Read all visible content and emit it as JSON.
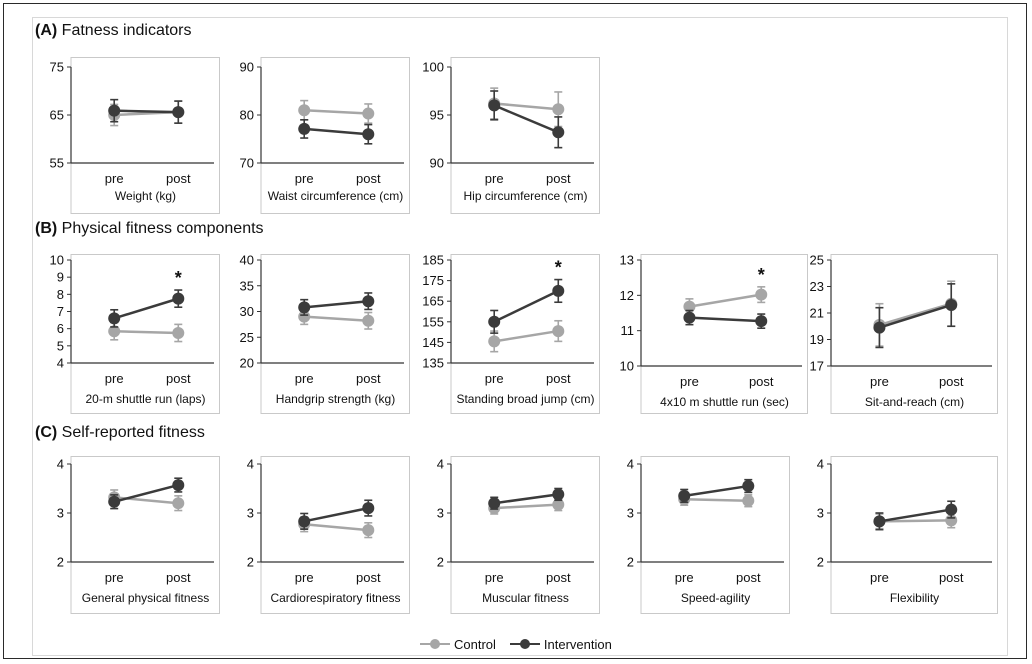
{
  "colors": {
    "control": "#a6a6a6",
    "intervention": "#3b3b3b",
    "axis": "#333333"
  },
  "sections": [
    {
      "label": "(A)",
      "title": "Fatness indicators"
    },
    {
      "label": "(B)",
      "title": "Physical fitness components"
    },
    {
      "label": "(C)",
      "title": "Self-reported fitness"
    }
  ],
  "legend": {
    "control": "Control",
    "intervention": "Intervention"
  },
  "chart_data": [
    {
      "type": "line",
      "section": "A",
      "xlabel": "Weight (kg)",
      "categories": [
        "pre",
        "post"
      ],
      "ylim": [
        55,
        75
      ],
      "yticks": [
        55,
        65,
        75
      ],
      "series": [
        {
          "name": "Control",
          "values": [
            65.0,
            65.6
          ],
          "err": [
            2.2,
            2.3
          ]
        },
        {
          "name": "Intervention",
          "values": [
            65.9,
            65.6
          ],
          "err": [
            2.3,
            2.3
          ]
        }
      ]
    },
    {
      "type": "line",
      "section": "A",
      "xlabel": "Waist circumference (cm)",
      "categories": [
        "pre",
        "post"
      ],
      "ylim": [
        70,
        90
      ],
      "yticks": [
        70,
        80,
        90
      ],
      "series": [
        {
          "name": "Control",
          "values": [
            81.0,
            80.3
          ],
          "err": [
            2.0,
            2.0
          ]
        },
        {
          "name": "Intervention",
          "values": [
            77.1,
            76.0
          ],
          "err": [
            1.9,
            2.0
          ]
        }
      ]
    },
    {
      "type": "line",
      "section": "A",
      "xlabel": "Hip circumference (cm)",
      "categories": [
        "pre",
        "post"
      ],
      "ylim": [
        90,
        100
      ],
      "yticks": [
        90,
        95,
        100
      ],
      "series": [
        {
          "name": "Control",
          "values": [
            96.2,
            95.6
          ],
          "err": [
            1.6,
            1.8
          ]
        },
        {
          "name": "Intervention",
          "values": [
            96.0,
            93.2
          ],
          "err": [
            1.5,
            1.6
          ]
        }
      ]
    },
    {
      "type": "line",
      "section": "B",
      "xlabel": "20-m shuttle run (laps)",
      "categories": [
        "pre",
        "post"
      ],
      "ylim": [
        4,
        10
      ],
      "yticks": [
        4,
        5,
        6,
        7,
        8,
        9,
        10
      ],
      "significant": "*",
      "series": [
        {
          "name": "Control",
          "values": [
            5.85,
            5.75
          ],
          "err": [
            0.5,
            0.5
          ]
        },
        {
          "name": "Intervention",
          "values": [
            6.6,
            7.75
          ],
          "err": [
            0.5,
            0.5
          ]
        }
      ]
    },
    {
      "type": "line",
      "section": "B",
      "xlabel": "Handgrip strength (kg)",
      "categories": [
        "pre",
        "post"
      ],
      "ylim": [
        20,
        40
      ],
      "yticks": [
        20,
        25,
        30,
        35,
        40
      ],
      "series": [
        {
          "name": "Control",
          "values": [
            29.0,
            28.2
          ],
          "err": [
            1.5,
            1.6
          ]
        },
        {
          "name": "Intervention",
          "values": [
            30.8,
            32.0
          ],
          "err": [
            1.5,
            1.6
          ]
        }
      ]
    },
    {
      "type": "line",
      "section": "B",
      "xlabel": "Standing broad jump (cm)",
      "categories": [
        "pre",
        "post"
      ],
      "ylim": [
        135,
        185
      ],
      "yticks": [
        135,
        145,
        155,
        165,
        175,
        185
      ],
      "significant": "*",
      "series": [
        {
          "name": "Control",
          "values": [
            145.5,
            150.5
          ],
          "err": [
            5,
            5
          ]
        },
        {
          "name": "Intervention",
          "values": [
            155.0,
            170.0
          ],
          "err": [
            5.5,
            5.5
          ]
        }
      ]
    },
    {
      "type": "line",
      "section": "B",
      "xlabel": "4x10 m shuttle run (sec)",
      "categories": [
        "pre",
        "post"
      ],
      "ylim": [
        10,
        13
      ],
      "yticks": [
        10,
        11,
        12,
        13
      ],
      "significant": "*",
      "series": [
        {
          "name": "Control",
          "values": [
            11.68,
            12.02
          ],
          "err": [
            0.22,
            0.22
          ]
        },
        {
          "name": "Intervention",
          "values": [
            11.37,
            11.27
          ],
          "err": [
            0.2,
            0.2
          ]
        }
      ]
    },
    {
      "type": "line",
      "section": "B",
      "xlabel": "Sit-and-reach (cm)",
      "categories": [
        "pre",
        "post"
      ],
      "ylim": [
        17,
        25
      ],
      "yticks": [
        17,
        19,
        21,
        23,
        25
      ],
      "series": [
        {
          "name": "Control",
          "values": [
            20.1,
            21.7
          ],
          "err": [
            1.6,
            1.7
          ]
        },
        {
          "name": "Intervention",
          "values": [
            19.9,
            21.6
          ],
          "err": [
            1.5,
            1.6
          ]
        }
      ]
    },
    {
      "type": "line",
      "section": "C",
      "xlabel": "General physical fitness",
      "categories": [
        "pre",
        "post"
      ],
      "ylim": [
        2,
        4
      ],
      "yticks": [
        2,
        3,
        4
      ],
      "series": [
        {
          "name": "Control",
          "values": [
            3.32,
            3.2
          ],
          "err": [
            0.15,
            0.15
          ]
        },
        {
          "name": "Intervention",
          "values": [
            3.23,
            3.57
          ],
          "err": [
            0.14,
            0.14
          ]
        }
      ]
    },
    {
      "type": "line",
      "section": "C",
      "xlabel": "Cardiorespiratory fitness",
      "categories": [
        "pre",
        "post"
      ],
      "ylim": [
        2,
        4
      ],
      "yticks": [
        2,
        3,
        4
      ],
      "series": [
        {
          "name": "Control",
          "values": [
            2.77,
            2.65
          ],
          "err": [
            0.15,
            0.15
          ]
        },
        {
          "name": "Intervention",
          "values": [
            2.83,
            3.1
          ],
          "err": [
            0.16,
            0.16
          ]
        }
      ]
    },
    {
      "type": "line",
      "section": "C",
      "xlabel": "Muscular fitness",
      "categories": [
        "pre",
        "post"
      ],
      "ylim": [
        2,
        4
      ],
      "yticks": [
        2,
        3,
        4
      ],
      "series": [
        {
          "name": "Control",
          "values": [
            3.1,
            3.17
          ],
          "err": [
            0.12,
            0.12
          ]
        },
        {
          "name": "Intervention",
          "values": [
            3.2,
            3.38
          ],
          "err": [
            0.12,
            0.12
          ]
        }
      ]
    },
    {
      "type": "line",
      "section": "C",
      "xlabel": "Speed-agility",
      "categories": [
        "pre",
        "post"
      ],
      "ylim": [
        2,
        4
      ],
      "yticks": [
        2,
        3,
        4
      ],
      "series": [
        {
          "name": "Control",
          "values": [
            3.28,
            3.25
          ],
          "err": [
            0.12,
            0.12
          ]
        },
        {
          "name": "Intervention",
          "values": [
            3.35,
            3.55
          ],
          "err": [
            0.13,
            0.13
          ]
        }
      ]
    },
    {
      "type": "line",
      "section": "C",
      "xlabel": "Flexibility",
      "categories": [
        "pre",
        "post"
      ],
      "ylim": [
        2,
        4
      ],
      "yticks": [
        2,
        3,
        4
      ],
      "series": [
        {
          "name": "Control",
          "values": [
            2.83,
            2.85
          ],
          "err": [
            0.15,
            0.15
          ]
        },
        {
          "name": "Intervention",
          "values": [
            2.83,
            3.07
          ],
          "err": [
            0.17,
            0.17
          ]
        }
      ]
    }
  ]
}
